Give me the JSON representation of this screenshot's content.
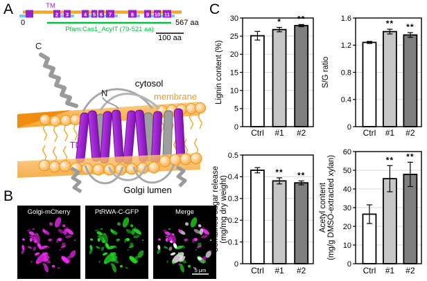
{
  "figure": {
    "panel_a": {
      "label": "A",
      "domain_diagram": {
        "tm_label": "TM",
        "start_aa": "0",
        "end_aa": "567 aa",
        "pfam_annotation": "Pfam:Cas1_AcylT (79-521 aa)",
        "scale_bar": "100 aa",
        "tm_numbers": [
          "2",
          "3",
          "4",
          "5",
          "6",
          "7",
          "8",
          "9",
          "10",
          "11"
        ]
      },
      "structure_labels": {
        "c_terminus": "C",
        "n_terminus": "N",
        "cytosol": "cytosol",
        "membrane": "membrane",
        "tm": "TM",
        "golgi_lumen": "Golgi lumen"
      }
    },
    "panel_b": {
      "label": "B",
      "images": [
        {
          "title": "Golgi-mCherry",
          "channel": "magenta"
        },
        {
          "title": "PtRWA-C-GFP",
          "channel": "green"
        },
        {
          "title": "Merge",
          "channel": "merge",
          "scale_bar": "5 μm"
        }
      ]
    },
    "panel_c": {
      "label": "C"
    }
  },
  "colors": {
    "backbone_orange": "#f5a623",
    "tm_purple": "#9c1fd0",
    "tm_purple_dark": "#6a0e96",
    "loop_blue": "#7cc7ea",
    "pfam_green": "#00bf3f",
    "membrane_orange": "#f59a1d",
    "mcherry_magenta": "#ff2bff",
    "gfp_green": "#22e022",
    "bar_fills": [
      "#ffffff",
      "#c6c6c6",
      "#7f7f7f"
    ],
    "grid_gray": "#d9d9d9"
  },
  "chart_data": [
    {
      "type": "bar",
      "id": "lignin-content",
      "categories": [
        "Ctrl",
        "#1",
        "#2"
      ],
      "values": [
        25.1,
        26.8,
        27.9
      ],
      "errors": [
        1.2,
        0.6,
        0.3
      ],
      "significance": [
        "",
        "*",
        "**"
      ],
      "ylabel_lines": [
        "Lignin content (%)"
      ],
      "ylim": [
        0,
        30
      ],
      "yticks": [
        0,
        5,
        10,
        15,
        20,
        25,
        30
      ],
      "ytick_labels": [
        "0",
        "5",
        "10",
        "15",
        "20",
        "25",
        "30"
      ],
      "grid": true,
      "legend": "none"
    },
    {
      "type": "bar",
      "id": "sg-ratio",
      "categories": [
        "Ctrl",
        "#1",
        "#2"
      ],
      "values": [
        1.24,
        1.4,
        1.35
      ],
      "errors": [
        0.015,
        0.035,
        0.035
      ],
      "significance": [
        "",
        "**",
        "**"
      ],
      "ylabel_lines": [
        "S/G ratio"
      ],
      "ylim": [
        0,
        1.6
      ],
      "yticks": [
        0,
        0.4,
        0.8,
        1.2,
        1.6
      ],
      "ytick_labels": [
        "0",
        "0.4",
        "0.8",
        "1.2",
        "1.6"
      ],
      "grid": true,
      "legend": "none"
    },
    {
      "type": "bar",
      "id": "combined-sugar-release",
      "categories": [
        "Ctrl",
        "#1",
        "#2"
      ],
      "values": [
        0.43,
        0.381,
        0.372
      ],
      "errors": [
        0.012,
        0.014,
        0.009
      ],
      "significance": [
        "",
        "**",
        "**"
      ],
      "ylabel_lines": [
        "Combined sugar release",
        "(mg/mg dry weight)"
      ],
      "ylim": [
        0,
        0.5
      ],
      "yticks": [
        0,
        0.1,
        0.2,
        0.3,
        0.4,
        0.5
      ],
      "ytick_labels": [
        "0",
        "0.1",
        "0.2",
        "0.3",
        "0.4",
        "0.5"
      ],
      "grid": true,
      "legend": "none"
    },
    {
      "type": "bar",
      "id": "acetyl-content",
      "categories": [
        "Ctrl",
        "#1",
        "#2"
      ],
      "values": [
        26.5,
        45.5,
        47.8
      ],
      "errors": [
        5.0,
        7.0,
        6.5
      ],
      "significance": [
        "",
        "**",
        "**"
      ],
      "ylabel_lines": [
        "Acetyl content",
        "(mg/g DMSO-extracted xylan)"
      ],
      "ylim": [
        0,
        60
      ],
      "yticks": [
        0,
        10,
        20,
        30,
        40,
        50,
        60
      ],
      "ytick_labels": [
        "0",
        "10",
        "20",
        "30",
        "40",
        "50",
        "60"
      ],
      "grid": true,
      "legend": "none"
    }
  ]
}
